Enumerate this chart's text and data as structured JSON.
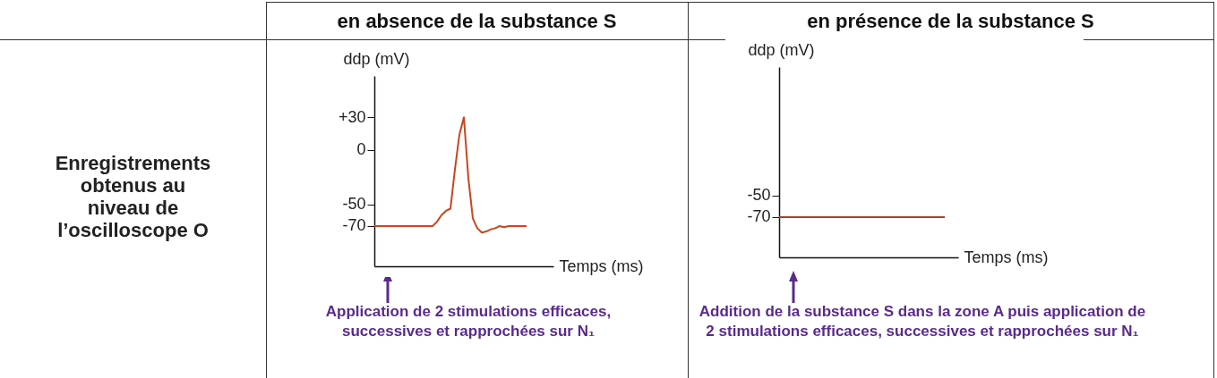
{
  "chart_data": [
    {
      "type": "line",
      "title": "en absence de la substance S",
      "ylabel": "ddp (mV)",
      "xlabel": "Temps (ms)",
      "categories": [
        null,
        null,
        null,
        null,
        null,
        null,
        null,
        null,
        null,
        null,
        null,
        null,
        null,
        null,
        null,
        null,
        null,
        null,
        null,
        null,
        null,
        null,
        null,
        null,
        null,
        null,
        null,
        null,
        null,
        null,
        null,
        null,
        null,
        null,
        null,
        null,
        null,
        null,
        null,
        null,
        null
      ],
      "values": [
        -70,
        -70,
        -70,
        -70,
        -70,
        -70,
        -70,
        -70,
        -70,
        -70,
        -70,
        -70,
        -70,
        -70,
        -66,
        -60,
        -56,
        -54,
        -18,
        14,
        30,
        -26,
        -63,
        -72,
        -76,
        -75,
        -73,
        -72,
        -70,
        -71,
        -70,
        -70,
        -70,
        -70,
        -70,
        null,
        null,
        null,
        null,
        null,
        null
      ],
      "color": "#c8461e",
      "ylim": [
        -107,
        68
      ],
      "yticks": [
        {
          "value": 30,
          "label": "+30"
        },
        0,
        -50,
        -70
      ],
      "grid": false,
      "tick_labels": "y",
      "annotations": [
        "Enregistrements obtenus au niveau de l’oscilloscope O",
        "Application de 2 stimulations efficaces, successives et rapprochées sur N₁"
      ]
    },
    {
      "type": "line",
      "title": "en présence de la substance S",
      "ylabel": "ddp (mV)",
      "xlabel": "Temps (ms)",
      "categories": [
        null,
        null,
        null,
        null,
        null,
        null,
        null,
        null,
        null,
        null,
        null,
        null,
        null,
        null,
        null,
        null,
        null,
        null,
        null,
        null,
        null,
        null,
        null,
        null,
        null,
        null,
        null,
        null,
        null,
        null,
        null,
        null,
        null,
        null,
        null,
        null,
        null,
        null,
        null,
        null,
        null
      ],
      "values": [
        -70,
        -70,
        -70,
        -70,
        -70,
        -70,
        -70,
        -70,
        -70,
        -70,
        -70,
        -70,
        -70,
        -70,
        -70,
        -70,
        -70,
        -70,
        -70,
        -70,
        -70,
        -70,
        -70,
        -70,
        -70,
        -70,
        -70,
        -70,
        -70,
        -70,
        -70,
        -70,
        -70,
        -70,
        -70,
        -70,
        -70,
        -70,
        null,
        null,
        null
      ],
      "color": "#a0442e",
      "ylim": [
        -107,
        68
      ],
      "yticks": [
        -50,
        -70
      ],
      "grid": false,
      "tick_labels": "y",
      "annotations": [
        "Addition de la substance S dans la zone A puis application de 2 stimulations efficaces, successives et rapprochées sur N₁"
      ]
    }
  ]
}
